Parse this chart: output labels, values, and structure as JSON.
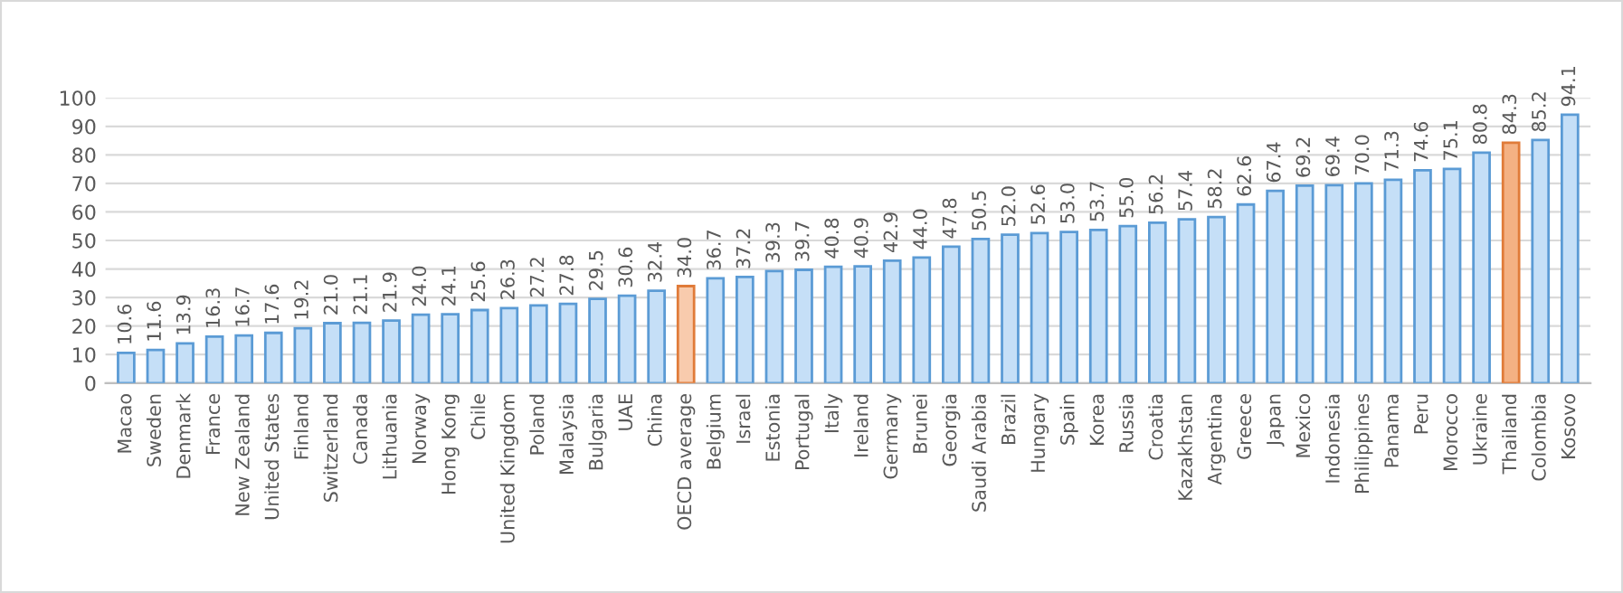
{
  "chart_data": {
    "type": "bar",
    "categories": [
      "Macao",
      "Sweden",
      "Denmark",
      "France",
      "New Zealand",
      "United States",
      "Finland",
      "Switzerland",
      "Canada",
      "Lithuania",
      "Norway",
      "Hong Kong",
      "Chile",
      "United Kingdom",
      "Poland",
      "Malaysia",
      "Bulgaria",
      "UAE",
      "China",
      "OECD average",
      "Belgium",
      "Israel",
      "Estonia",
      "Portugal",
      "Italy",
      "Ireland",
      "Germany",
      "Brunei",
      "Georgia",
      "Saudi Arabia",
      "Brazil",
      "Hungary",
      "Spain",
      "Korea",
      "Russia",
      "Croatia",
      "Kazakhstan",
      "Argentina",
      "Greece",
      "Japan",
      "Mexico",
      "Indonesia",
      "Philippines",
      "Panama",
      "Peru",
      "Morocco",
      "Ukraine",
      "Thailand",
      "Colombia",
      "Kosovo"
    ],
    "values": [
      10.6,
      11.6,
      13.9,
      16.3,
      16.7,
      17.6,
      19.2,
      21.0,
      21.1,
      21.9,
      24.0,
      24.1,
      25.6,
      26.3,
      27.2,
      27.8,
      29.5,
      30.6,
      32.4,
      34.0,
      36.7,
      37.2,
      39.3,
      39.7,
      40.8,
      40.9,
      42.9,
      44.0,
      47.8,
      50.5,
      52.0,
      52.6,
      53.0,
      53.7,
      55.0,
      56.2,
      57.4,
      58.2,
      62.6,
      67.4,
      69.2,
      69.4,
      70.0,
      71.3,
      74.6,
      75.1,
      80.8,
      84.3,
      85.2,
      94.1
    ],
    "colors": [
      "#c5dff7",
      "#c5dff7",
      "#c5dff7",
      "#c5dff7",
      "#c5dff7",
      "#c5dff7",
      "#c5dff7",
      "#c5dff7",
      "#c5dff7",
      "#c5dff7",
      "#c5dff7",
      "#c5dff7",
      "#c5dff7",
      "#c5dff7",
      "#c5dff7",
      "#c5dff7",
      "#c5dff7",
      "#c5dff7",
      "#c5dff7",
      "#f8cbad",
      "#c5dff7",
      "#c5dff7",
      "#c5dff7",
      "#c5dff7",
      "#c5dff7",
      "#c5dff7",
      "#c5dff7",
      "#c5dff7",
      "#c5dff7",
      "#c5dff7",
      "#c5dff7",
      "#c5dff7",
      "#c5dff7",
      "#c5dff7",
      "#c5dff7",
      "#c5dff7",
      "#c5dff7",
      "#c5dff7",
      "#c5dff7",
      "#c5dff7",
      "#c5dff7",
      "#c5dff7",
      "#c5dff7",
      "#c5dff7",
      "#c5dff7",
      "#c5dff7",
      "#c5dff7",
      "#f4b183",
      "#c5dff7",
      "#c5dff7"
    ],
    "ylim": [
      0,
      100
    ],
    "yticks": [
      0,
      10,
      20,
      30,
      40,
      50,
      60,
      70,
      80,
      90,
      100
    ],
    "grid": "y",
    "value_labels": [
      "10.6",
      "11.6",
      "13.9",
      "16.3",
      "16.7",
      "17.6",
      "19.2",
      "21.0",
      "21.1",
      "21.9",
      "24.0",
      "24.1",
      "25.6",
      "26.3",
      "27.2",
      "27.8",
      "29.5",
      "30.6",
      "32.4",
      "34.0",
      "36.7",
      "37.2",
      "39.3",
      "39.7",
      "40.8",
      "40.9",
      "42.9",
      "44.0",
      "47.8",
      "50.5",
      "52.0",
      "52.6",
      "53.0",
      "53.7",
      "55.0",
      "56.2",
      "57.4",
      "58.2",
      "62.6",
      "67.4",
      "69.2",
      "69.4",
      "70.0",
      "71.3",
      "74.6",
      "75.1",
      "80.8",
      "84.3",
      "85.2",
      "94.1"
    ]
  }
}
